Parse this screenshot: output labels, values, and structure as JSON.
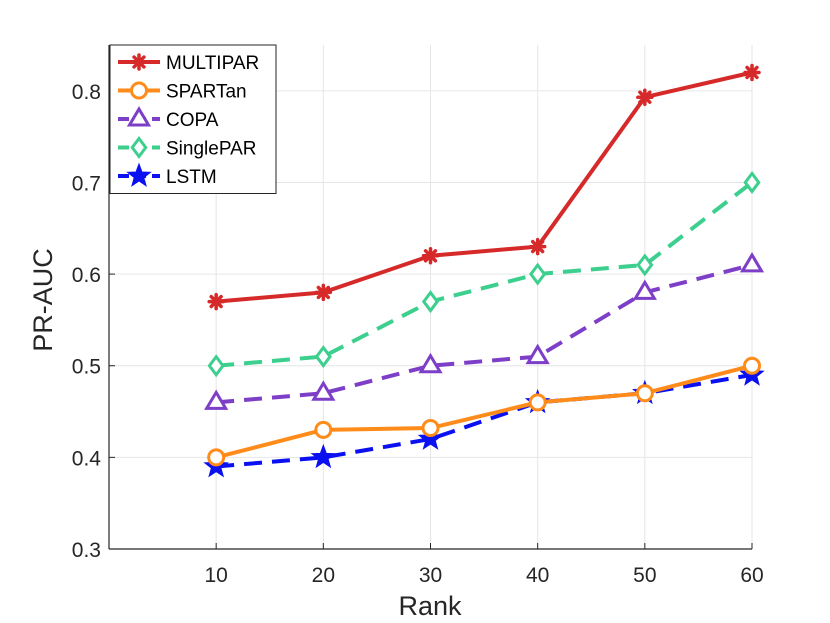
{
  "chart_data": {
    "type": "line",
    "title": "",
    "xlabel": "Rank",
    "ylabel": "PR-AUC",
    "x": [
      10,
      20,
      30,
      40,
      50,
      60
    ],
    "xlim": [
      0,
      60
    ],
    "ylim": [
      0.3,
      0.85
    ],
    "xticks": [
      "10",
      "20",
      "30",
      "40",
      "50",
      "60"
    ],
    "yticks": [
      "0.3",
      "0.4",
      "0.5",
      "0.6",
      "0.7",
      "0.8"
    ],
    "grid": true,
    "legend_position": "top-left",
    "series": [
      {
        "name": "MULTIPAR",
        "values": [
          0.57,
          0.58,
          0.62,
          0.63,
          0.793,
          0.82
        ],
        "color": "#d62a2a",
        "dash": "solid",
        "marker": "asterisk"
      },
      {
        "name": "SPARTan",
        "values": [
          0.4,
          0.43,
          0.432,
          0.46,
          0.47,
          0.5
        ],
        "color": "#ff8c1a",
        "dash": "solid",
        "marker": "circle"
      },
      {
        "name": "COPA",
        "values": [
          0.46,
          0.47,
          0.5,
          0.51,
          0.58,
          0.61
        ],
        "color": "#7e3fc8",
        "dash": "dashed",
        "marker": "triangle"
      },
      {
        "name": "SinglePAR",
        "values": [
          0.5,
          0.51,
          0.57,
          0.6,
          0.61,
          0.7
        ],
        "color": "#3ccf8e",
        "dash": "dashed",
        "marker": "diamond"
      },
      {
        "name": "LSTM",
        "values": [
          0.39,
          0.4,
          0.42,
          0.46,
          0.47,
          0.49
        ],
        "color": "#0a10f0",
        "dash": "dashed",
        "marker": "star"
      }
    ]
  }
}
